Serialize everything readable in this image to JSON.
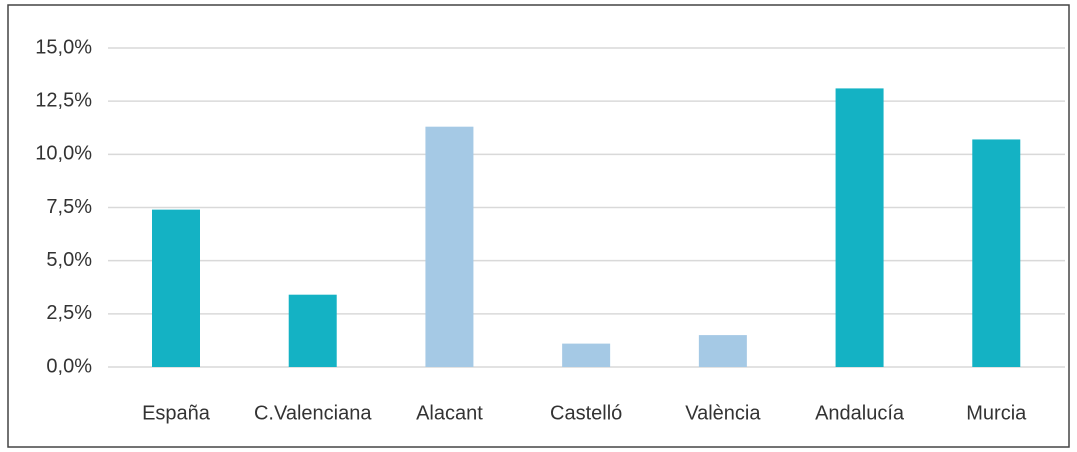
{
  "chart_data": {
    "type": "bar",
    "categories": [
      "España",
      "C.Valenciana",
      "Alacant",
      "Castelló",
      "València",
      "Andalucía",
      "Murcia"
    ],
    "values": [
      7.4,
      3.4,
      11.3,
      1.1,
      1.5,
      13.1,
      10.7
    ],
    "colors": [
      "#14b2c4",
      "#14b2c4",
      "#a5c9e5",
      "#a5c9e5",
      "#a5c9e5",
      "#14b2c4",
      "#14b2c4"
    ],
    "ylim": [
      0,
      15
    ],
    "yticks": [
      {
        "value": 0,
        "label": "0,0%"
      },
      {
        "value": 2.5,
        "label": "2,5%"
      },
      {
        "value": 5,
        "label": "5,0%"
      },
      {
        "value": 7.5,
        "label": "7,5%"
      },
      {
        "value": 10,
        "label": "10,0%"
      },
      {
        "value": 12.5,
        "label": "12,5%"
      },
      {
        "value": 15,
        "label": "15,0%"
      }
    ],
    "grid": true
  }
}
